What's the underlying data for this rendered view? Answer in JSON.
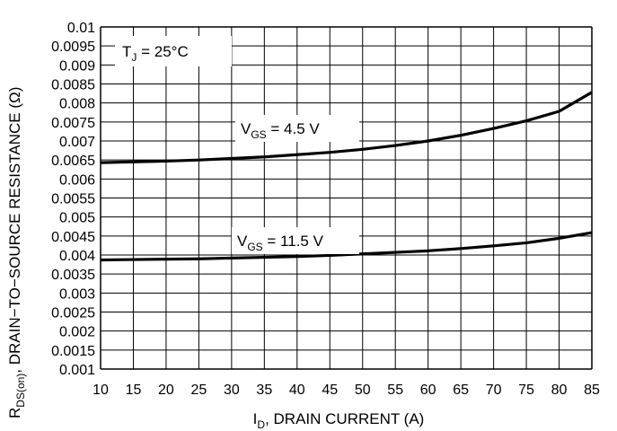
{
  "chart_data": {
    "type": "line",
    "xlabel_main": "I",
    "xlabel_sub": "D",
    "xlabel_rest": ", DRAIN CURRENT (A)",
    "ylabel_main": "R",
    "ylabel_sub": "DS(on)",
    "ylabel_rest": ", DRAIN−TO−SOURCE RESISTANCE (Ω)",
    "xlim": [
      10,
      85
    ],
    "ylim": [
      0.001,
      0.01
    ],
    "x_ticks": [
      "10",
      "15",
      "20",
      "25",
      "30",
      "35",
      "40",
      "45",
      "50",
      "55",
      "60",
      "65",
      "70",
      "75",
      "80",
      "85"
    ],
    "y_ticks": [
      "0.001",
      "0.0015",
      "0.002",
      "0.0025",
      "0.003",
      "0.0035",
      "0.004",
      "0.0045",
      "0.005",
      "0.0055",
      "0.006",
      "0.0065",
      "0.007",
      "0.0075",
      "0.008",
      "0.0085",
      "0.009",
      "0.0095",
      "0.01"
    ],
    "grid": true,
    "annotation": {
      "main": "T",
      "sub": "J",
      "rest": " = 25°C"
    },
    "series": [
      {
        "name": "VGS = 4.5 V",
        "label_main": "V",
        "label_sub": "GS",
        "label_rest": " = 4.5 V",
        "x": [
          10,
          15,
          20,
          25,
          30,
          35,
          40,
          45,
          50,
          55,
          60,
          65,
          70,
          75,
          80,
          85
        ],
        "y": [
          0.00643,
          0.00645,
          0.00647,
          0.0065,
          0.00654,
          0.00658,
          0.00664,
          0.0067,
          0.00678,
          0.00688,
          0.007,
          0.00715,
          0.00733,
          0.00753,
          0.00778,
          0.00828
        ]
      },
      {
        "name": "VGS = 11.5 V",
        "label_main": "V",
        "label_sub": "GS",
        "label_rest": " = 11.5 V",
        "x": [
          10,
          15,
          20,
          25,
          30,
          35,
          40,
          45,
          50,
          55,
          60,
          65,
          70,
          75,
          80,
          85
        ],
        "y": [
          0.00387,
          0.00388,
          0.00389,
          0.0039,
          0.00392,
          0.00394,
          0.00396,
          0.00399,
          0.00403,
          0.00407,
          0.00411,
          0.00417,
          0.00424,
          0.00432,
          0.00444,
          0.00459
        ]
      }
    ]
  }
}
